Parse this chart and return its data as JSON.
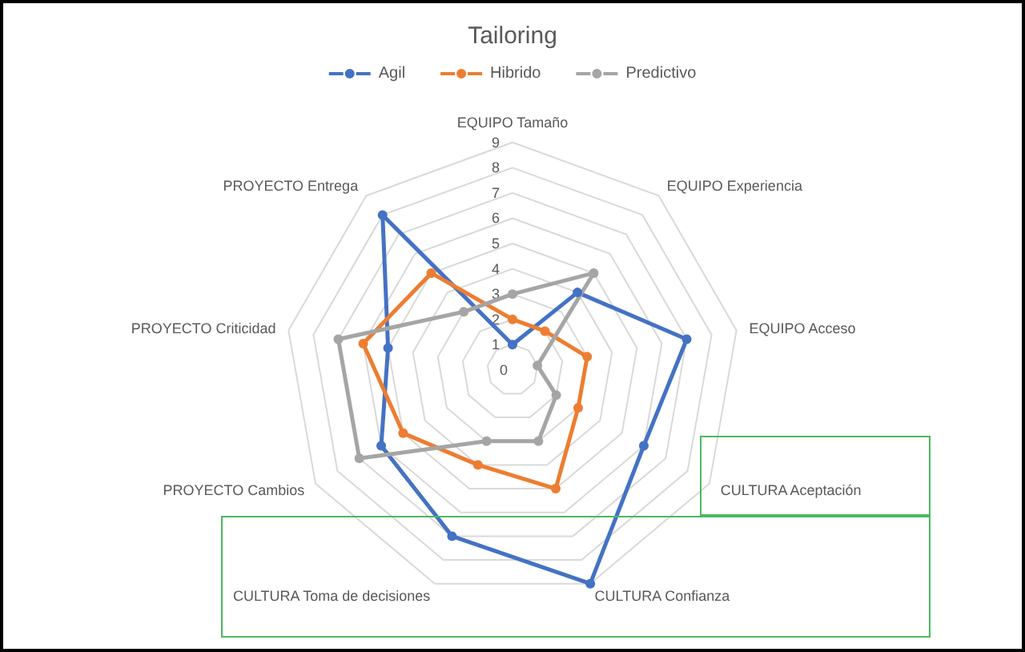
{
  "chart_data": {
    "type": "radar",
    "title": "Tailoring",
    "categories": [
      "EQUIPO Tamaño",
      "EQUIPO Experiencia",
      "EQUIPO Acceso",
      "CULTURA Aceptación",
      "CULTURA Confianza",
      "CULTURA Toma de decisiones",
      "PROYECTO Cambios",
      "PROYECTO Criticidad",
      "PROYECTO Entrega"
    ],
    "series": [
      {
        "name": "Agil",
        "color": "#4472c4",
        "values": [
          1,
          4,
          7,
          6,
          9,
          7,
          6,
          5,
          8
        ]
      },
      {
        "name": "Hibrido",
        "color": "#ed7d31",
        "values": [
          2,
          2,
          3,
          3,
          5,
          4,
          5,
          6,
          5
        ]
      },
      {
        "name": "Predictivo",
        "color": "#a5a5a5",
        "values": [
          3,
          5,
          1,
          2,
          3,
          3,
          7,
          7,
          3
        ]
      }
    ],
    "ylim": [
      0,
      9
    ],
    "yticks": [
      0,
      1,
      2,
      3,
      4,
      5,
      6,
      7,
      8,
      9
    ],
    "grid": true,
    "legend": "top",
    "marker": "circle",
    "line_style": "solid"
  }
}
